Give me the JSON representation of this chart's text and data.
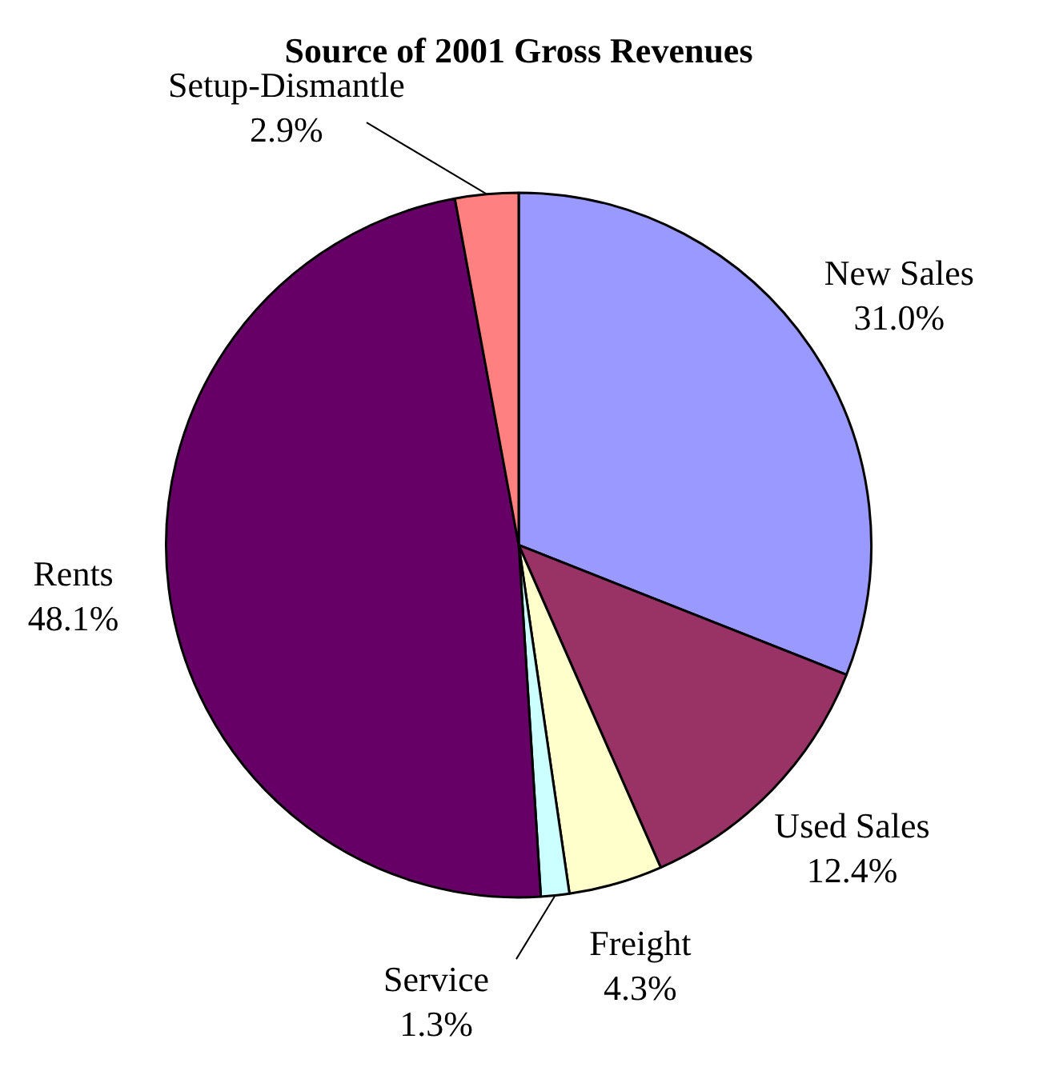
{
  "chart_data": {
    "type": "pie",
    "title": "Source of 2001 Gross Revenues",
    "categories": [
      "New Sales",
      "Used Sales",
      "Freight",
      "Service",
      "Rents",
      "Setup-Dismantle"
    ],
    "values": [
      31.0,
      12.4,
      4.3,
      1.3,
      48.1,
      2.9
    ],
    "value_labels": [
      "31.0%",
      "12.4%",
      "4.3%",
      "1.3%",
      "48.1%",
      "2.9%"
    ],
    "colors": [
      "#9999ff",
      "#993366",
      "#ffffcc",
      "#ccffff",
      "#660066",
      "#ff8080"
    ],
    "legend": false
  }
}
